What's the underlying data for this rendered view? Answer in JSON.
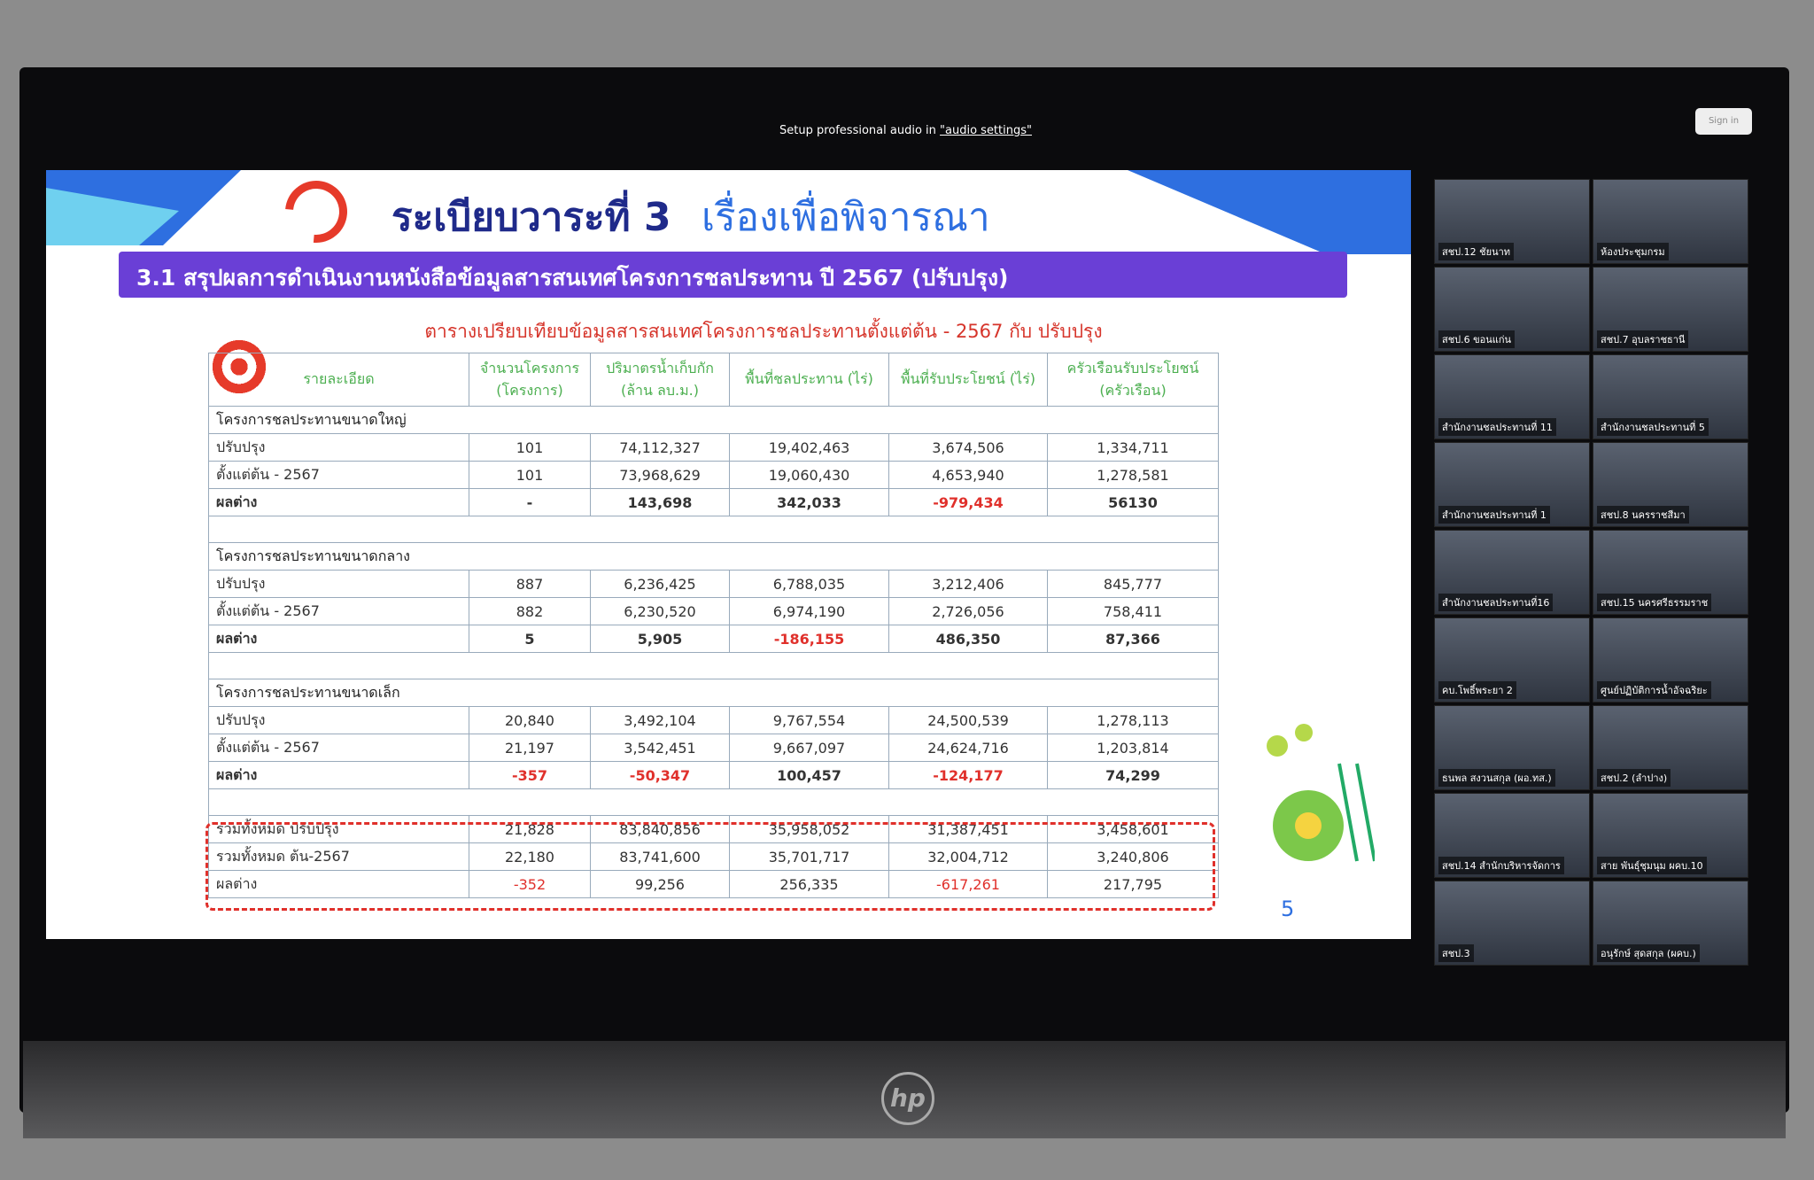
{
  "topbar": {
    "audio_text": "Setup professional audio in",
    "audio_link": "\"audio settings\"",
    "sign_in": "Sign in"
  },
  "slide": {
    "title_main": "ระเบียบวาระที่ 3",
    "title_sub": "เรื่องเพื่อพิจารณา",
    "banner": "3.1 สรุปผลการดำเนินงานหนังสือข้อมูลสารสนเทศโครงการชลประทาน ปี 2567 (ปรับปรุง)",
    "caption": "ตารางเปรียบเทียบข้อมูลสารสนเทศโครงการชลประทานตั้งแต่ต้น - 2567 กับ ปรับปรุง",
    "page_number": "5"
  },
  "table": {
    "header": [
      "รายละเอียด",
      "จำนวนโครงการ (โครงการ)",
      "ปริมาตรน้ำเก็บกัก (ล้าน ลบ.ม.)",
      "พื้นที่ชลประทาน (ไร่)",
      "พื้นที่รับประโยชน์ (ไร่)",
      "ครัวเรือนรับประโยชน์ (ครัวเรือน)"
    ],
    "sections": [
      {
        "title": "โครงการชลประทานขนาดใหญ่",
        "rows": [
          [
            "ปรับปรุง",
            "101",
            "74,112,327",
            "19,402,463",
            "3,674,506",
            "1,334,711"
          ],
          [
            "ตั้งแต่ต้น - 2567",
            "101",
            "73,968,629",
            "19,060,430",
            "4,653,940",
            "1,278,581"
          ],
          [
            "ผลต่าง",
            "-",
            "143,698",
            "342,033",
            "-979,434",
            "56130"
          ]
        ]
      },
      {
        "title": "โครงการชลประทานขนาดกลาง",
        "rows": [
          [
            "ปรับปรุง",
            "887",
            "6,236,425",
            "6,788,035",
            "3,212,406",
            "845,777"
          ],
          [
            "ตั้งแต่ต้น - 2567",
            "882",
            "6,230,520",
            "6,974,190",
            "2,726,056",
            "758,411"
          ],
          [
            "ผลต่าง",
            "5",
            "5,905",
            "-186,155",
            "486,350",
            "87,366"
          ]
        ]
      },
      {
        "title": "โครงการชลประทานขนาดเล็ก",
        "rows": [
          [
            "ปรับปรุง",
            "20,840",
            "3,492,104",
            "9,767,554",
            "24,500,539",
            "1,278,113"
          ],
          [
            "ตั้งแต่ต้น - 2567",
            "21,197",
            "3,542,451",
            "9,667,097",
            "24,624,716",
            "1,203,814"
          ],
          [
            "ผลต่าง",
            "-357",
            "-50,347",
            "100,457",
            "-124,177",
            "74,299"
          ]
        ]
      }
    ],
    "totals": [
      [
        "รวมทั้งหมด ปรับปรุง",
        "21,828",
        "83,840,856",
        "35,958,052",
        "31,387,451",
        "3,458,601"
      ],
      [
        "รวมทั้งหมด ต้น-2567",
        "22,180",
        "83,741,600",
        "35,701,717",
        "32,004,712",
        "3,240,806"
      ],
      [
        "ผลต่าง",
        "-352",
        "99,256",
        "256,335",
        "-617,261",
        "217,795"
      ]
    ]
  },
  "tiles": [
    "สชป.12 ชัยนาท",
    "ห้องประชุมกรม",
    "สชป.6 ขอนแก่น",
    "สชป.7 อุบลราชธานี",
    "สำนักงานชลประทานที่ 11",
    "สำนักงานชลประทานที่ 5",
    "สำนักงานชลประทานที่ 1",
    "สชป.8 นครราชสีมา",
    "สำนักงานชลประทานที่16",
    "สชป.15 นครศรีธรรมราช",
    "คบ.โพธิ์พระยา 2",
    "ศูนย์ปฏิบัติการน้ำอัจฉริยะ",
    "ธนพล สงวนสกุล (ผอ.ทส.)",
    "สชป.2 (ลำปาง)",
    "สชป.14 สำนักบริหารจัดการ",
    "สาย พันธุ์ชุมนุม ผคบ.10",
    "สชป.3",
    "อนุรักษ์ สุดสกุล (ผคบ.)"
  ]
}
